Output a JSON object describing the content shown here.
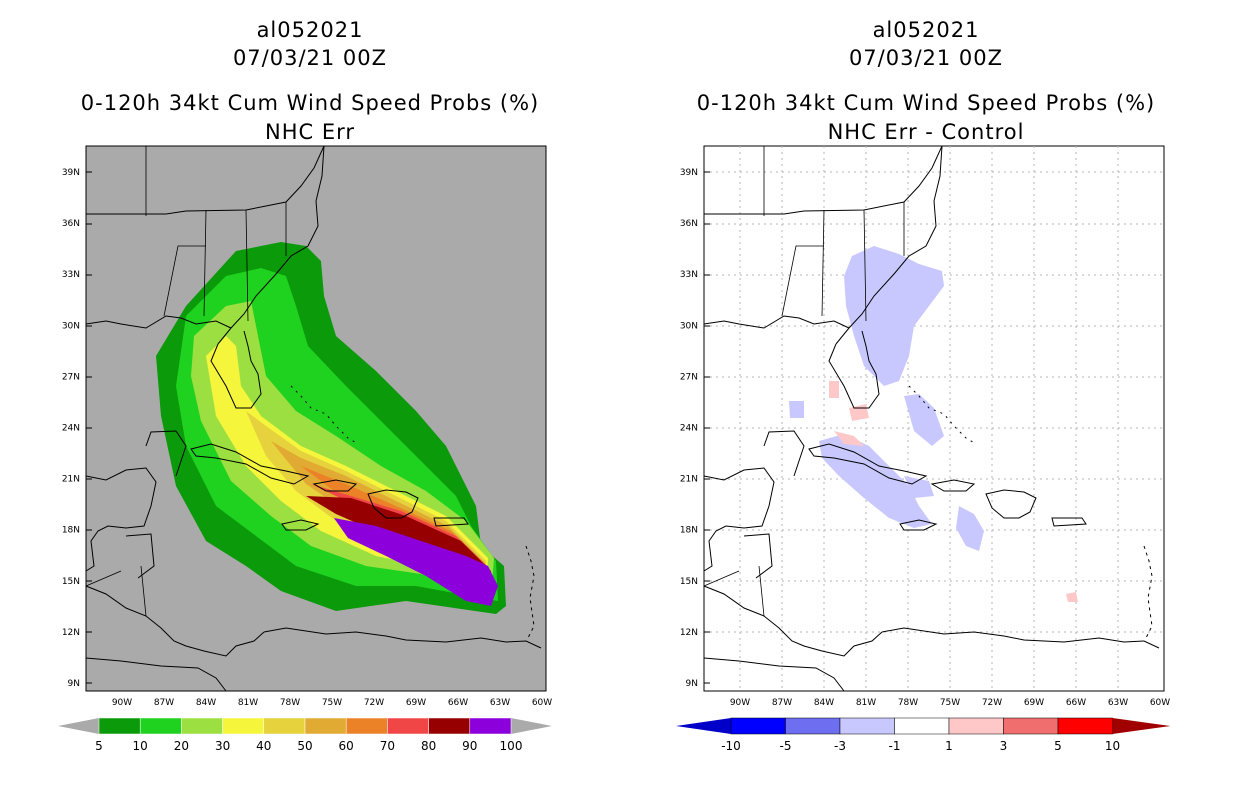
{
  "left_panel": {
    "storm_id": "al052021",
    "datetime": "07/03/21 00Z",
    "product": "0-120h 34kt Cum Wind Speed Probs (%)",
    "subtitle": "NHC Err",
    "legend_labels": [
      "5",
      "10",
      "20",
      "30",
      "40",
      "50",
      "60",
      "70",
      "80",
      "90",
      "100"
    ],
    "legend_colors": [
      "#0a9a0a",
      "#1fd21f",
      "#9be040",
      "#f5f53c",
      "#e6d23c",
      "#e1aa32",
      "#eb8228",
      "#f04646",
      "#960000",
      "#8c00dc"
    ],
    "background_color": "#aaaaaa"
  },
  "right_panel": {
    "storm_id": "al052021",
    "datetime": "07/03/21 00Z",
    "product": "0-120h 34kt Cum Wind Speed Probs (%)",
    "subtitle": "NHC Err - Control",
    "legend_labels": [
      "-10",
      "-5",
      "-3",
      "-1",
      "1",
      "3",
      "5",
      "10"
    ],
    "legend_colors": [
      "#0000c8",
      "#0000ff",
      "#6e6ef0",
      "#c8c8ff",
      "#ffffff",
      "#ffc8c8",
      "#f06e6e",
      "#ff0000",
      "#a00000"
    ]
  },
  "lat_labels": [
    "39N",
    "36N",
    "33N",
    "30N",
    "27N",
    "24N",
    "21N",
    "18N",
    "15N",
    "12N",
    "9N"
  ],
  "lon_labels": [
    "90W",
    "87W",
    "84W",
    "81W",
    "78W",
    "75W",
    "72W",
    "69W",
    "66W",
    "63W",
    "60W"
  ]
}
